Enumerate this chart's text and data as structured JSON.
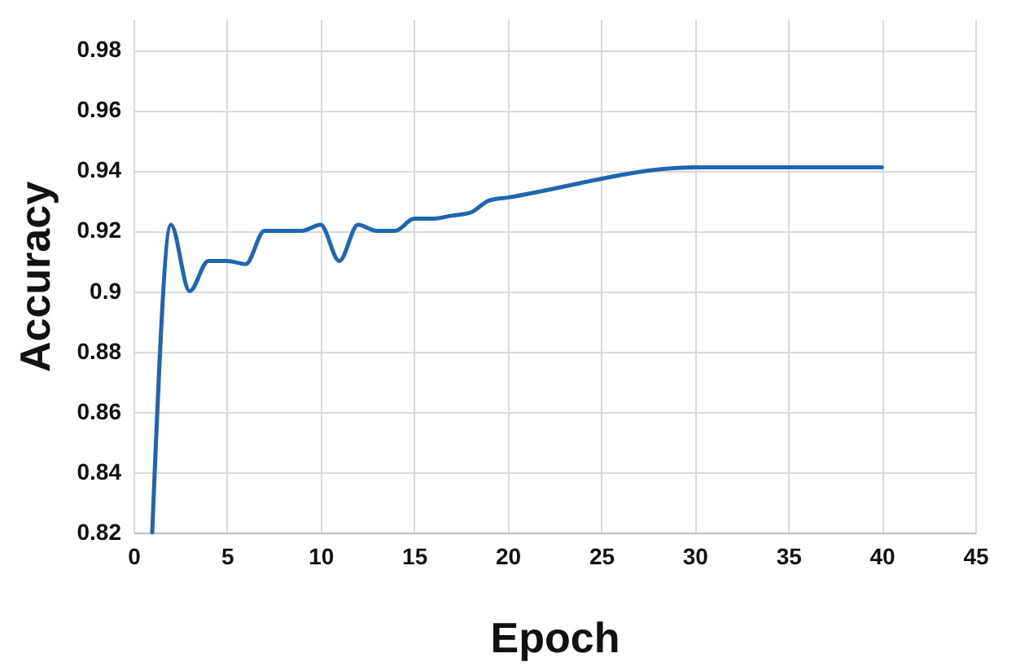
{
  "chart_data": {
    "type": "line",
    "xlabel": "Epoch",
    "ylabel": "Accuracy",
    "x": [
      1,
      2,
      3,
      4,
      5,
      6,
      7,
      8,
      9,
      10,
      11,
      12,
      13,
      14,
      15,
      16,
      17,
      18,
      19,
      20,
      30,
      40
    ],
    "series": [
      {
        "color": "#1f66b0",
        "values": [
          0.82,
          0.922,
          0.9,
          0.91,
          0.91,
          0.909,
          0.92,
          0.92,
          0.92,
          0.922,
          0.91,
          0.922,
          0.92,
          0.92,
          0.924,
          0.924,
          0.925,
          0.926,
          0.93,
          0.931,
          0.941,
          0.941
        ]
      }
    ],
    "xlim": [
      0,
      45
    ],
    "xticks": [
      0,
      5,
      10,
      15,
      20,
      25,
      30,
      35,
      40,
      45
    ],
    "ylim": [
      0.82,
      0.99
    ],
    "yticks": [
      0.82,
      0.84,
      0.86,
      0.88,
      0.9,
      0.92,
      0.94,
      0.96,
      0.98
    ],
    "grid": true,
    "marker": "none",
    "line_style": "solid",
    "legend": false
  }
}
